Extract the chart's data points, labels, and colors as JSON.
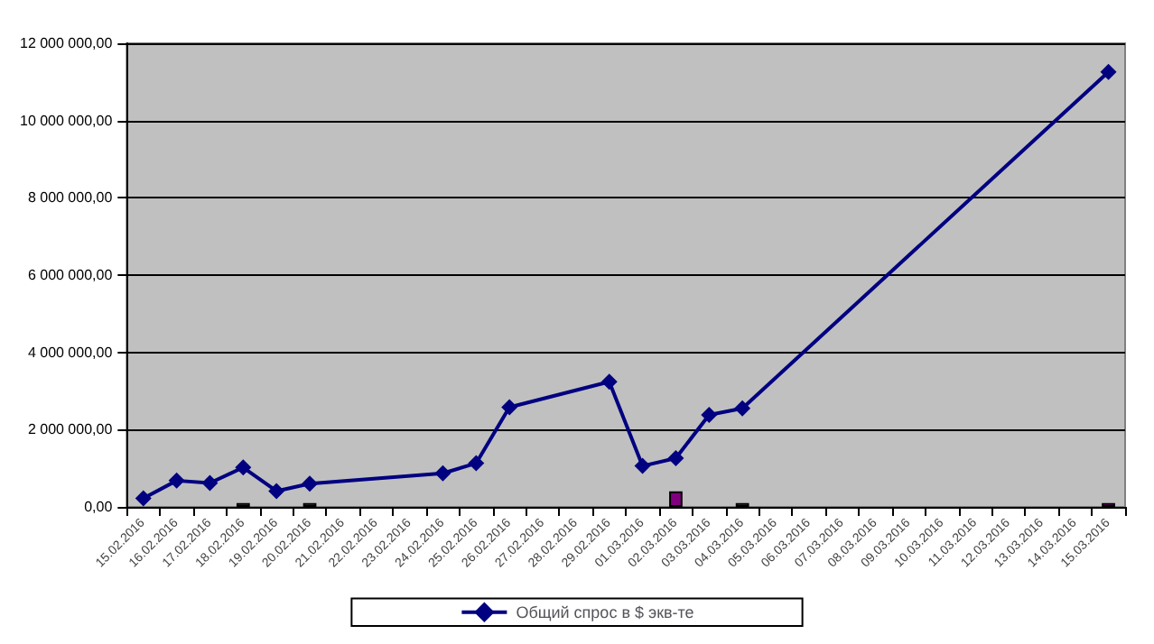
{
  "chart_data": {
    "type": "bar",
    "categories": [
      "15.02.2016",
      "16.02.2016",
      "17.02.2016",
      "18.02.2016",
      "19.02.2016",
      "20.02.2016",
      "21.02.2016",
      "22.02.2016",
      "23.02.2016",
      "24.02.2016",
      "25.02.2016",
      "26.02.2016",
      "27.02.2016",
      "28.02.2016",
      "29.02.2016",
      "01.03.2016",
      "02.03.2016",
      "03.03.2016",
      "04.03.2016",
      "05.03.2016",
      "06.03.2016",
      "07.03.2016",
      "08.03.2016",
      "09.03.2016",
      "10.03.2016",
      "11.03.2016",
      "12.03.2016",
      "13.03.2016",
      "14.03.2016",
      "15.03.2016"
    ],
    "series": [
      {
        "color": "#800080",
        "colors": [
          null,
          null,
          null,
          "#808080",
          null,
          "#808080",
          null,
          null,
          null,
          null,
          null,
          null,
          null,
          null,
          null,
          null,
          "#800080",
          null,
          "#808080",
          null,
          null,
          null,
          null,
          null,
          null,
          null,
          null,
          null,
          null,
          "#ff00ff"
        ],
        "values": [
          null,
          null,
          null,
          100000,
          null,
          100000,
          null,
          null,
          null,
          null,
          null,
          null,
          null,
          null,
          null,
          null,
          400000,
          null,
          100000,
          null,
          null,
          null,
          null,
          null,
          null,
          null,
          null,
          null,
          null,
          100000
        ]
      },
      {
        "type": "line",
        "name": "Общий спрос в $ экв-те",
        "color": "#000080",
        "x": [
          "15.02.2016",
          "16.02.2016",
          "17.02.2016",
          "18.02.2016",
          "19.02.2016",
          "20.02.2016",
          "24.02.2016",
          "25.02.2016",
          "26.02.2016",
          "29.02.2016",
          "01.03.2016",
          "02.03.2016",
          "03.03.2016",
          "04.03.2016",
          "15.03.2016"
        ],
        "values": [
          220000,
          680000,
          620000,
          1020000,
          410000,
          600000,
          870000,
          1130000,
          2580000,
          3240000,
          1060000,
          1260000,
          2380000,
          2550000,
          11260000
        ]
      }
    ],
    "ylim": [
      0,
      12000000
    ],
    "yticks": [
      {
        "value": 0,
        "label": "0,00"
      },
      {
        "value": 2000000,
        "label": "2 000 000,00"
      },
      {
        "value": 4000000,
        "label": "4 000 000,00"
      },
      {
        "value": 6000000,
        "label": "6 000 000,00"
      },
      {
        "value": 8000000,
        "label": "8 000 000,00"
      },
      {
        "value": 10000000,
        "label": "10 000 000,00"
      },
      {
        "value": 12000000,
        "label": "12 000 000,00"
      }
    ],
    "grid": "y",
    "legend": "bottom",
    "marker": "diamond"
  }
}
